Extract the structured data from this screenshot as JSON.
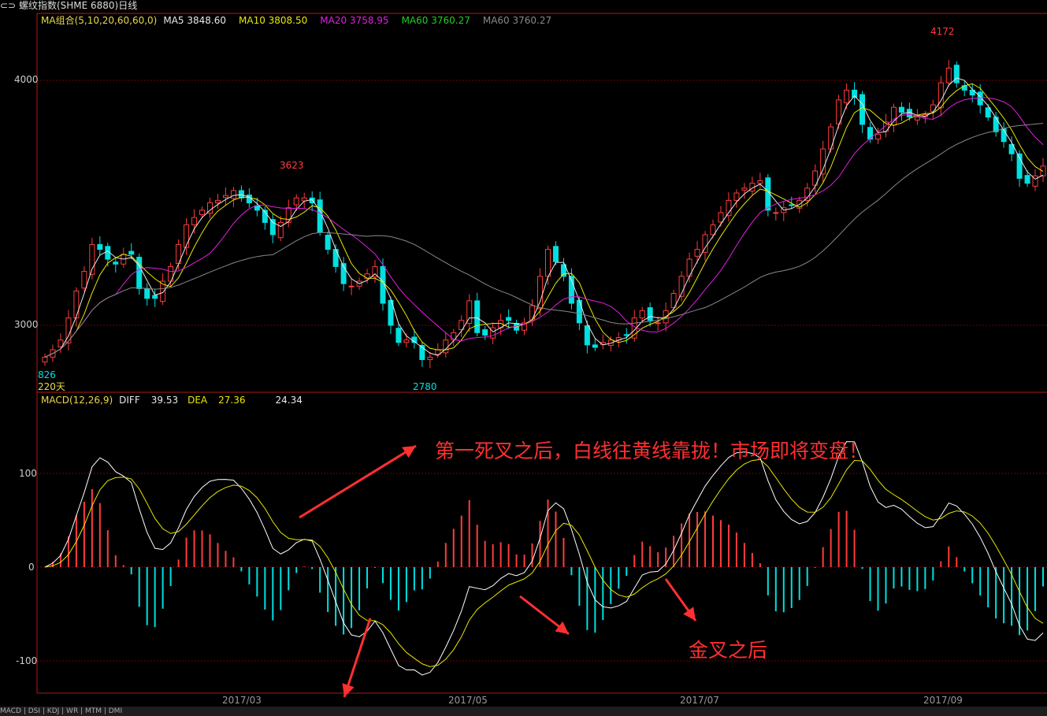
{
  "title": {
    "icon": "link-icon",
    "text": "螺纹指数(SHME 6880)日线"
  },
  "ma_legend": [
    {
      "text": "MA组合(5,10,20,60,60,0)",
      "color": "#e8d84a"
    },
    {
      "text": "MA5 3848.60",
      "color": "#e8e8e8"
    },
    {
      "text": "MA10 3808.50",
      "color": "#e8e800"
    },
    {
      "text": "MA20 3758.95",
      "color": "#e020e0"
    },
    {
      "text": "MA60 3760.27",
      "color": "#20d020"
    },
    {
      "text": "MA60 3760.27",
      "color": "#888888"
    }
  ],
  "macd_legend": [
    {
      "text": "MACD(12,26,9)",
      "color": "#e8d84a"
    },
    {
      "text": "DIFF",
      "color": "#e8e8e8"
    },
    {
      "text": "39.53",
      "color": "#e8e8e8"
    },
    {
      "text": "DEA",
      "color": "#e8e800"
    },
    {
      "text": "27.36",
      "color": "#e8e800"
    },
    {
      "text": "24.34",
      "color": "#e8e8e8"
    }
  ],
  "price_axis": {
    "ticks": [
      "4000",
      "3000"
    ]
  },
  "macd_axis": {
    "ticks": [
      "100",
      "0",
      "-100"
    ]
  },
  "x_axis": {
    "ticks": [
      "2017/03",
      "2017/05",
      "2017/07",
      "2017/09"
    ]
  },
  "price_labels": {
    "high": "4172",
    "mid_high": "3623",
    "low": "2780",
    "left_low": "826",
    "days": "220天"
  },
  "annotations": {
    "main": "第一死叉之后，白线往黄线靠拢！市场即将变盘！",
    "golden": "金叉之后"
  },
  "tabs": [
    "MACD",
    "DSI",
    "KDJ",
    "WR",
    "MTM",
    "DMI"
  ],
  "colors": {
    "up": "#ff3c3c",
    "down": "#00e0e0",
    "grid": "#7a0000",
    "border": "#b01818",
    "annotation": "#ff3030"
  },
  "chart_data": {
    "type": "candlestick",
    "price_range": [
      2727,
      4270
    ],
    "macd_range": [
      -134,
      185
    ],
    "close": [
      2870,
      2900,
      2940,
      3030,
      3140,
      3220,
      3330,
      3310,
      3270,
      3250,
      3290,
      3290,
      3150,
      3110,
      3110,
      3180,
      3240,
      3330,
      3410,
      3440,
      3470,
      3500,
      3510,
      3530,
      3550,
      3520,
      3500,
      3470,
      3420,
      3370,
      3420,
      3480,
      3520,
      3520,
      3500,
      3380,
      3310,
      3240,
      3170,
      3160,
      3180,
      3210,
      3240,
      3090,
      3000,
      2930,
      2940,
      2930,
      2860,
      2870,
      2900,
      2940,
      2970,
      3020,
      3100,
      2970,
      2960,
      2990,
      3020,
      3020,
      2980,
      3010,
      3080,
      3200,
      3310,
      3260,
      3200,
      3090,
      3010,
      2920,
      2910,
      2930,
      2940,
      2950,
      2960,
      3030,
      3060,
      3020,
      3010,
      3060,
      3130,
      3200,
      3270,
      3310,
      3370,
      3410,
      3460,
      3510,
      3540,
      3560,
      3580,
      3590,
      3470,
      3460,
      3480,
      3490,
      3510,
      3560,
      3630,
      3720,
      3810,
      3920,
      3960,
      3930,
      3820,
      3760,
      3780,
      3830,
      3890,
      3870,
      3850,
      3850,
      3860,
      3900,
      3990,
      4050,
      3990,
      3960,
      3940,
      3900,
      3850,
      3790,
      3750,
      3700,
      3600,
      3580,
      3610,
      3650
    ]
  }
}
